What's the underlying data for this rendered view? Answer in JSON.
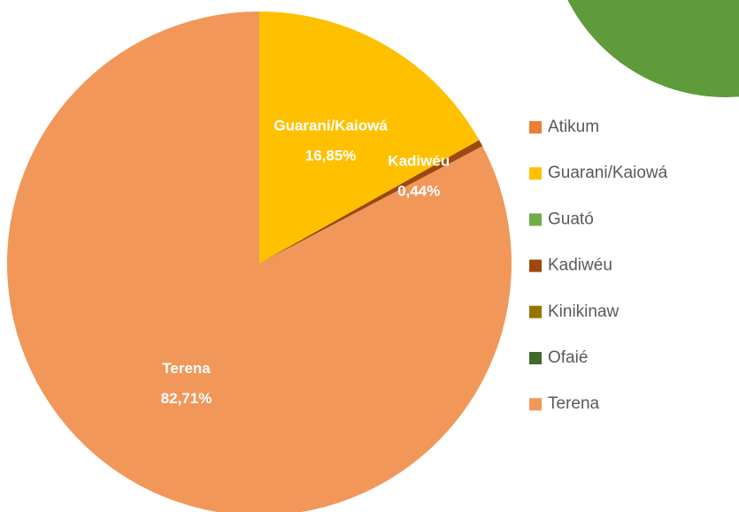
{
  "chart_data": {
    "type": "pie",
    "categories": [
      "Atikum",
      "Guarani/Kaiowá",
      "Guató",
      "Kadiwéu",
      "Kinikinaw",
      "Ofaié",
      "Terena"
    ],
    "values": [
      0,
      16.85,
      0,
      0.44,
      0,
      0,
      82.71
    ],
    "value_labels": [
      null,
      "16,85%",
      null,
      "0,44%",
      null,
      null,
      "82,71%"
    ],
    "colors": [
      "#ED7D31",
      "#FFC000",
      "#70AD47",
      "#9E480E",
      "#997300",
      "#43682B",
      "#F1975A"
    ],
    "legend": "right"
  }
}
